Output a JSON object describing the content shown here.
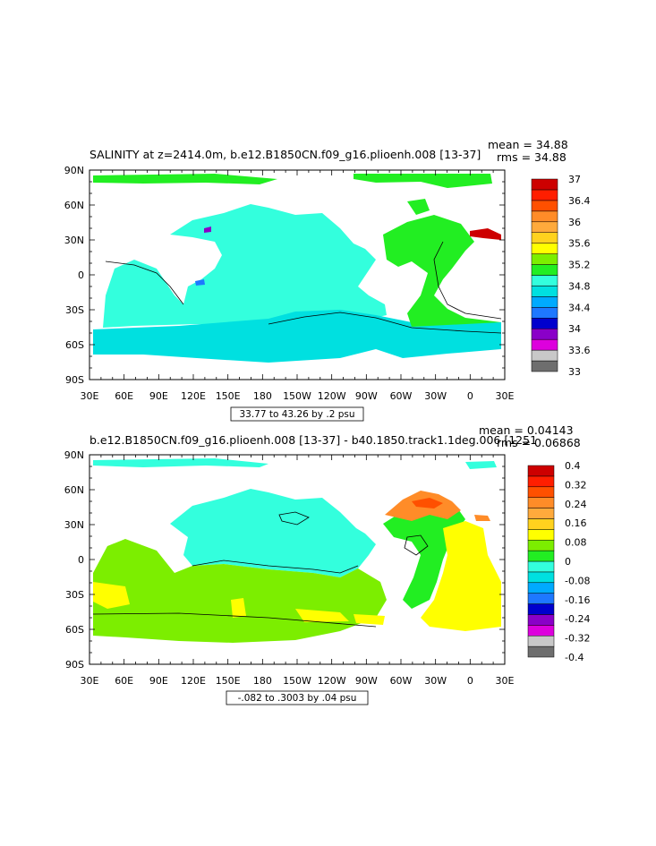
{
  "chart_data": [
    {
      "type": "heatmap",
      "title": "SALINITY at z=2414.0m, b.e12.B1850CN.f09_g16.plioenh.008 [13-37]",
      "stats": {
        "mean": "mean = 34.88",
        "rms": "rms = 34.88"
      },
      "x_ticks": [
        "30E",
        "60E",
        "90E",
        "120E",
        "150E",
        "180",
        "150W",
        "120W",
        "90W",
        "60W",
        "30W",
        "0",
        "30E"
      ],
      "y_ticks": [
        "90N",
        "60N",
        "30N",
        "0",
        "30S",
        "60S",
        "90S"
      ],
      "xlim": [
        30,
        390
      ],
      "ylim": [
        -90,
        90
      ],
      "contour_info": "33.77 to 43.26 by .2 psu",
      "colorbar": {
        "colors": [
          "#6e6e6e",
          "#c8c8c8",
          "#dd00dd",
          "#8a00c8",
          "#0000cd",
          "#1e78ff",
          "#00aaff",
          "#00e0e0",
          "#33ffdd",
          "#22ee22",
          "#7cee00",
          "#ffff00",
          "#ffd21e",
          "#ffaa3c",
          "#ff8c28",
          "#ff5000",
          "#ff1e00",
          "#cd0000"
        ],
        "labels": [
          "33",
          "33.6",
          "34",
          "34.4",
          "34.8",
          "35.2",
          "35.6",
          "36",
          "36.4",
          "37"
        ]
      },
      "field_colors": {
        "pacific_indian": "#33ffdd",
        "southern": "#00e0e0",
        "atlantic": "#22ee22",
        "arctic": "#22ee22",
        "med": "#cd0000",
        "anomaly_a": "#8a00c8",
        "anomaly_b": "#1e78ff"
      }
    },
    {
      "type": "heatmap",
      "title": "b.e12.B1850CN.f09_g16.plioenh.008 [13-37] - b40.1850.track1.1deg.006 [1251",
      "stats": {
        "mean": "mean = 0.04143",
        "rms": "rms = 0.06868"
      },
      "x_ticks": [
        "30E",
        "60E",
        "90E",
        "120E",
        "150E",
        "180",
        "150W",
        "120W",
        "90W",
        "60W",
        "30W",
        "0",
        "30E"
      ],
      "y_ticks": [
        "90N",
        "60N",
        "30N",
        "0",
        "30S",
        "60S",
        "90S"
      ],
      "xlim": [
        30,
        390
      ],
      "ylim": [
        -90,
        90
      ],
      "contour_info": "-.082 to .3003 by .04 psu",
      "colorbar": {
        "colors": [
          "#6e6e6e",
          "#c8c8c8",
          "#dd00dd",
          "#8a00c8",
          "#0000cd",
          "#1e78ff",
          "#00aaff",
          "#00e0e0",
          "#33ffdd",
          "#22ee22",
          "#7cee00",
          "#ffff00",
          "#ffd21e",
          "#ffaa3c",
          "#ff8c28",
          "#ff5000",
          "#ff1e00",
          "#cd0000"
        ],
        "labels": [
          "-0.4",
          "-0.32",
          "-0.24",
          "-0.16",
          "-0.08",
          "0",
          "0.08",
          "0.16",
          "0.24",
          "0.32",
          "0.4"
        ]
      },
      "field_colors": {
        "pacific_north": "#33ffdd",
        "indian_pacific_south": "#7cee00",
        "atlantic_north": "#22ee22",
        "atlantic_south": "#ffff00",
        "labrador": "#ff8c28",
        "southern": "#7cee00"
      }
    }
  ]
}
